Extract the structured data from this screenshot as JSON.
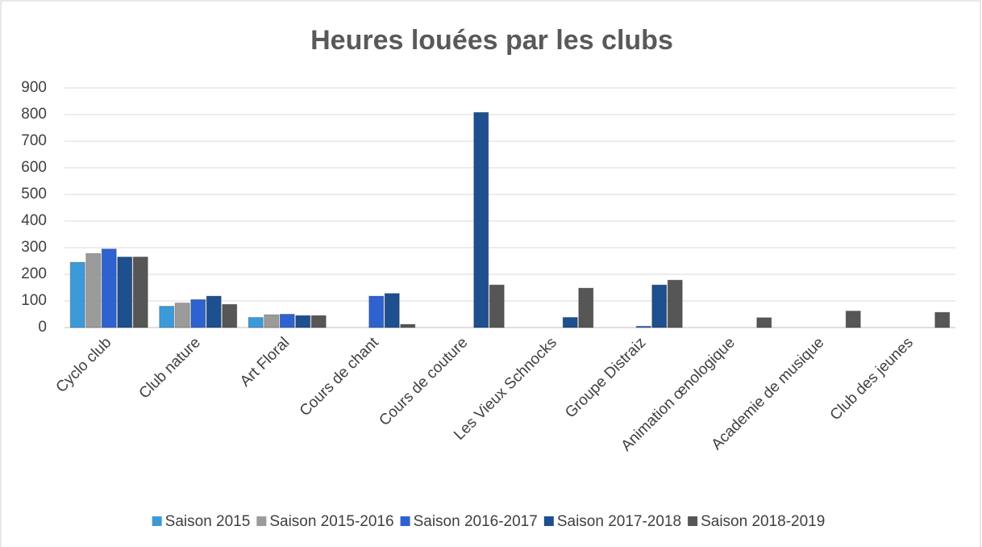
{
  "chart_data": {
    "type": "bar",
    "title": "Heures louées par les clubs",
    "categories": [
      "Cyclo club",
      "Club nature",
      "Art Floral",
      "Cours de chant",
      "Cours de couture",
      "Les Vieux Schnocks",
      "Groupe Distraiz",
      "Animation œnologique",
      "Academie de musique",
      "Club des jeunes"
    ],
    "series": [
      {
        "name": "Saison 2015",
        "color": "#3d9ad8",
        "values": [
          245,
          80,
          38,
          null,
          null,
          null,
          null,
          null,
          null,
          null
        ]
      },
      {
        "name": "Saison 2015-2016",
        "color": "#9b9b9b",
        "values": [
          278,
          92,
          48,
          null,
          null,
          null,
          null,
          null,
          null,
          null
        ]
      },
      {
        "name": "Saison 2016-2017",
        "color": "#2e62d0",
        "values": [
          295,
          105,
          50,
          118,
          null,
          null,
          5,
          null,
          null,
          null
        ]
      },
      {
        "name": "Saison 2017-2018",
        "color": "#1e4f8e",
        "values": [
          265,
          118,
          45,
          128,
          808,
          38,
          160,
          null,
          null,
          null
        ]
      },
      {
        "name": "Saison 2018-2019",
        "color": "#565656",
        "values": [
          265,
          87,
          45,
          12,
          160,
          148,
          178,
          37,
          62,
          57
        ]
      }
    ],
    "ylim": [
      0,
      900
    ],
    "yticks": [
      0,
      100,
      200,
      300,
      400,
      500,
      600,
      700,
      800,
      900
    ],
    "grid": true,
    "legend": "bottom"
  }
}
